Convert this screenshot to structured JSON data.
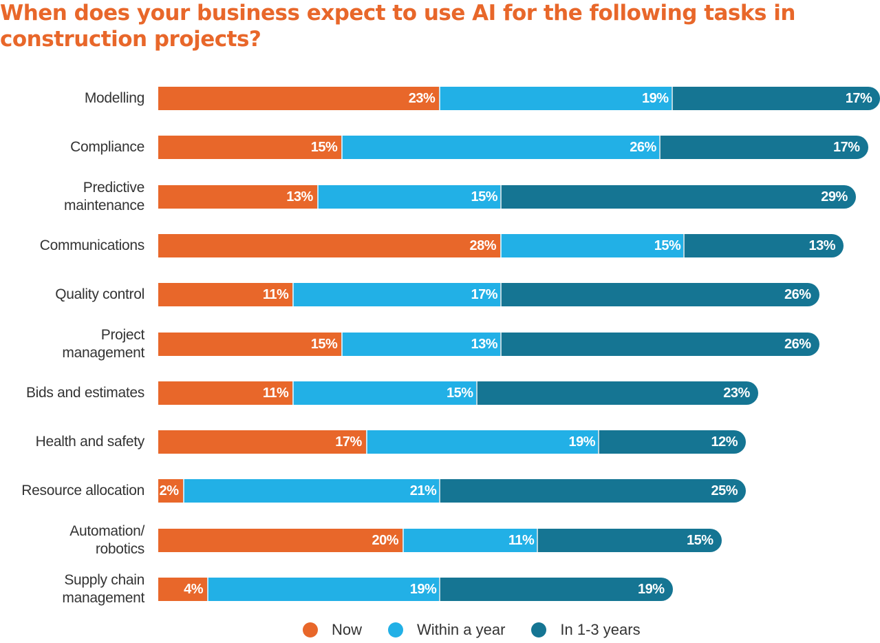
{
  "chart_data": {
    "type": "bar",
    "orientation": "horizontal",
    "stacked": true,
    "title": "When does your business expect to use AI for the following tasks in construction projects?",
    "xlabel": "",
    "ylabel": "",
    "grid": false,
    "legend_position": "bottom",
    "categories": [
      "Modelling",
      "Compliance",
      "Predictive\nmaintenance",
      "Communications",
      "Quality control",
      "Project\nmanagement",
      "Bids and estimates",
      "Health and safety",
      "Resource allocation",
      "Automation/\nrobotics",
      "Supply chain\nmanagement"
    ],
    "series": [
      {
        "name": "Now",
        "color": "#e8672a",
        "values": [
          23,
          15,
          13,
          28,
          11,
          15,
          11,
          17,
          2,
          20,
          4
        ]
      },
      {
        "name": "Within a year",
        "color": "#22b0e6",
        "values": [
          19,
          26,
          15,
          15,
          17,
          13,
          15,
          19,
          21,
          11,
          19
        ]
      },
      {
        "name": "In 1-3 years",
        "color": "#157593",
        "values": [
          17,
          17,
          29,
          13,
          26,
          26,
          23,
          12,
          25,
          15,
          19
        ]
      }
    ],
    "value_suffix": "%"
  }
}
